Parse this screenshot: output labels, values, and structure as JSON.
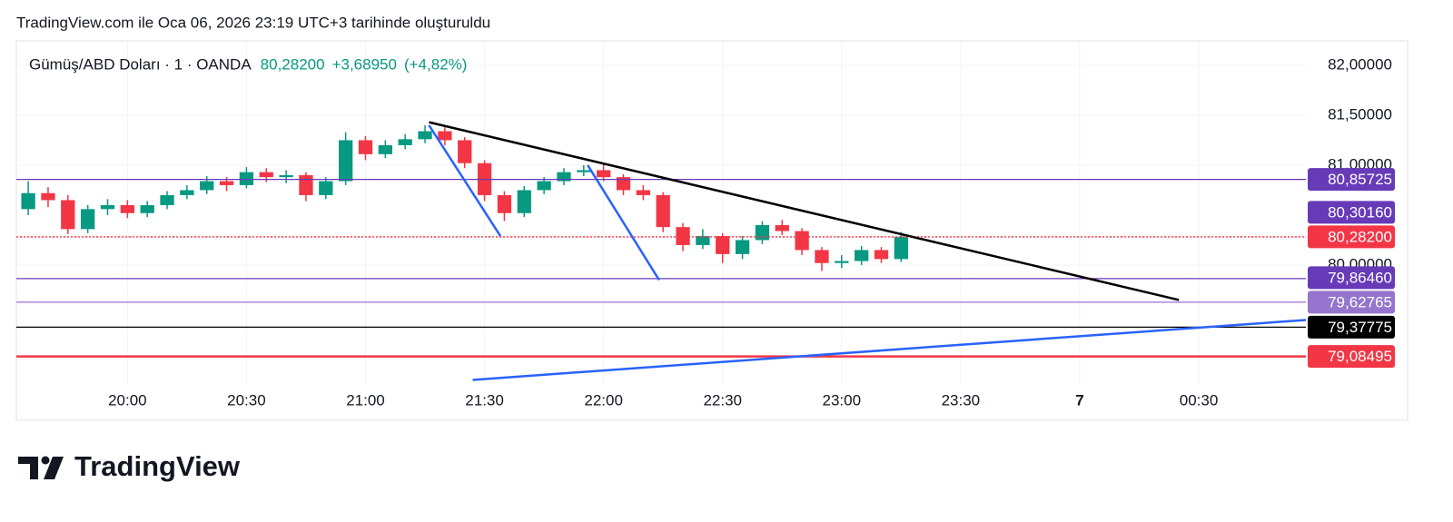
{
  "header": {
    "caption": "TradingView.com ile Oca 06, 2026 23:19 UTC+3 tarihinde oluşturuldu"
  },
  "footer": {
    "logo": "TradingView"
  },
  "chart_data": {
    "type": "candlestick",
    "quote": {
      "symbol": "Gümüş/ABD Doları · 1 · OANDA",
      "last": {
        "value": 80.282,
        "label": "80,28200"
      },
      "change": {
        "value": 3.6895,
        "label": "+3,68950"
      },
      "change_pct": {
        "value": 4.82,
        "label": "(+4,82%)"
      }
    },
    "up_color": "#089981",
    "down_color": "#f23645",
    "x": [
      "19:35",
      "19:40",
      "19:45",
      "19:50",
      "19:55",
      "20:00",
      "20:05",
      "20:10",
      "20:15",
      "20:20",
      "20:25",
      "20:30",
      "20:35",
      "20:40",
      "20:45",
      "20:50",
      "20:55",
      "21:00",
      "21:05",
      "21:10",
      "21:15",
      "21:20",
      "21:25",
      "21:30",
      "21:35",
      "21:40",
      "21:45",
      "21:50",
      "21:55",
      "22:00",
      "22:05",
      "22:10",
      "22:15",
      "22:20",
      "22:25",
      "22:30",
      "22:35",
      "22:40",
      "22:45",
      "22:50",
      "22:55",
      "23:00",
      "23:05",
      "23:10",
      "23:15"
    ],
    "open": [
      80.56,
      80.72,
      80.65,
      80.36,
      80.56,
      80.6,
      80.52,
      80.6,
      80.7,
      80.75,
      80.84,
      80.8,
      80.93,
      80.88,
      80.9,
      80.7,
      80.84,
      81.25,
      81.11,
      81.2,
      81.26,
      81.34,
      81.25,
      81.02,
      80.7,
      80.52,
      80.75,
      80.84,
      80.93,
      80.95,
      80.88,
      80.75,
      80.7,
      80.38,
      80.2,
      80.29,
      80.11,
      80.25,
      80.4,
      80.34,
      80.15,
      80.02,
      80.04,
      80.15,
      80.06
    ],
    "high": [
      80.84,
      80.78,
      80.7,
      80.6,
      80.66,
      80.65,
      80.64,
      80.74,
      80.8,
      80.89,
      80.88,
      80.98,
      80.97,
      80.95,
      80.93,
      80.88,
      81.33,
      81.29,
      81.25,
      81.31,
      81.4,
      81.38,
      81.28,
      81.05,
      80.74,
      80.79,
      80.88,
      80.97,
      81.0,
      81.02,
      80.91,
      80.8,
      80.73,
      80.42,
      80.36,
      80.32,
      80.29,
      80.44,
      80.45,
      80.37,
      80.18,
      80.1,
      80.19,
      80.18,
      80.33
    ],
    "low": [
      80.5,
      80.58,
      80.31,
      80.32,
      80.5,
      80.47,
      80.48,
      80.56,
      80.66,
      80.71,
      80.74,
      80.77,
      80.83,
      80.82,
      80.64,
      80.66,
      80.8,
      81.05,
      81.07,
      81.16,
      81.22,
      81.2,
      80.97,
      80.64,
      80.44,
      80.48,
      80.71,
      80.8,
      80.89,
      80.84,
      80.7,
      80.65,
      80.33,
      80.14,
      80.16,
      80.02,
      80.06,
      80.21,
      80.3,
      80.1,
      79.94,
      79.97,
      80.0,
      80.02,
      80.03
    ],
    "close": [
      80.72,
      80.65,
      80.36,
      80.56,
      80.6,
      80.52,
      80.6,
      80.7,
      80.75,
      80.84,
      80.8,
      80.93,
      80.88,
      80.9,
      80.7,
      80.84,
      81.25,
      81.11,
      81.2,
      81.26,
      81.34,
      81.25,
      81.02,
      80.7,
      80.52,
      80.75,
      80.84,
      80.93,
      80.95,
      80.88,
      80.75,
      80.7,
      80.38,
      80.2,
      80.29,
      80.11,
      80.25,
      80.4,
      80.34,
      80.15,
      80.02,
      80.04,
      80.15,
      80.06,
      80.28
    ],
    "xlim": [
      "19:32",
      "00:57"
    ],
    "xticks": [
      "20:00",
      "20:30",
      "21:00",
      "21:30",
      "22:00",
      "22:30",
      "23:00",
      "23:30",
      {
        "value": "00:00",
        "label": "7"
      },
      "00:30"
    ],
    "ylim": [
      78.445,
      82.245
    ],
    "yticks": [
      {
        "value": 82,
        "label": "82,00000"
      },
      {
        "value": 81.5,
        "label": "81,50000"
      },
      {
        "value": 81,
        "label": "81,00000"
      },
      {
        "value": 80,
        "label": "80,00000"
      }
    ],
    "grid": true,
    "levels": [
      {
        "value": 80.85725,
        "label": "80,85725",
        "color": "#673ab7",
        "line": true,
        "style": "solid"
      },
      {
        "value": 80.3016,
        "label": "80,30160",
        "color": "#673ab7",
        "line": false,
        "style": "solid"
      },
      {
        "value": 80.282,
        "label": "80,28200",
        "color": "#f23645",
        "line": true,
        "style": "dotted"
      },
      {
        "value": 79.8646,
        "label": "79,86460",
        "color": "#673ab7",
        "line": true,
        "style": "solid"
      },
      {
        "value": 79.62765,
        "label": "79,62765",
        "color": "#9575cd",
        "line": true,
        "style": "solid"
      },
      {
        "value": 79.37775,
        "label": "79,37775",
        "color": "#000000",
        "line": true,
        "style": "solid"
      },
      {
        "value": 79.08495,
        "label": "79,08495",
        "color": "#f23645",
        "line": true,
        "style": "solid"
      }
    ],
    "drawings": [
      {
        "color": "#000000",
        "x": [
          "21:16",
          "00:25"
        ],
        "y": [
          81.43,
          79.65
        ]
      },
      {
        "color": "#2962ff",
        "x": [
          "21:16",
          "21:34"
        ],
        "y": [
          81.4,
          80.29
        ]
      },
      {
        "color": "#2962ff",
        "x": [
          "21:56",
          "22:14"
        ],
        "y": [
          81.0,
          79.85
        ]
      },
      {
        "color": "#2962ff",
        "x": [
          "21:27",
          "00:57"
        ],
        "y": [
          78.85,
          79.45
        ]
      }
    ]
  }
}
